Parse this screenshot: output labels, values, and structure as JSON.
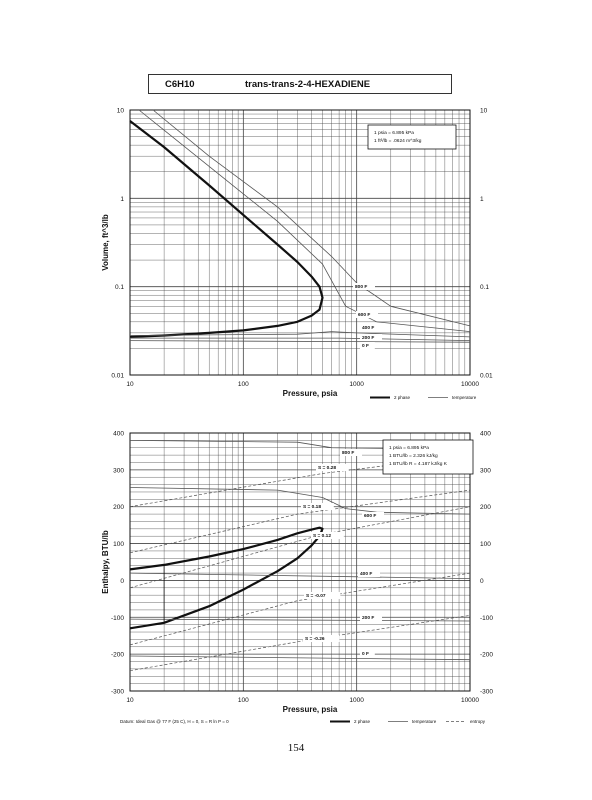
{
  "header": {
    "formula": "C6H10",
    "name": "trans-trans-2-4-HEXADIENE"
  },
  "page_number": "154",
  "colors": {
    "ink": "#111111",
    "grid": "#444444",
    "thin": "#555555"
  },
  "chart_data": [
    {
      "type": "line",
      "xlabel": "Pressure,  psia",
      "ylabel": "Volume, ft^3/lb",
      "xscale": "log",
      "yscale": "log",
      "xlim": [
        10,
        10000
      ],
      "ylim": [
        0.01,
        10
      ],
      "x_ticks": [
        "10",
        "100",
        "1000",
        "10000"
      ],
      "y_ticks_left": [
        "0.01",
        "0.1",
        "1",
        "10"
      ],
      "y_ticks_right": [
        "0.01",
        "0.1",
        "1",
        "10"
      ],
      "grid": true,
      "note_box": [
        "1 psia  =  6.895 kPa",
        "1 ft^3/lb  =  .0624 m^3/kg"
      ],
      "legend": [
        "2 phase",
        "temperature"
      ],
      "series": [
        {
          "kind": "2 phase",
          "x": [
            10,
            20,
            50,
            100,
            200,
            300,
            400,
            470,
            500,
            470,
            400,
            300,
            200,
            100,
            50,
            20,
            10
          ],
          "y": [
            7.5,
            3.8,
            1.4,
            0.65,
            0.3,
            0.19,
            0.13,
            0.1,
            0.075,
            0.055,
            0.047,
            0.04,
            0.036,
            0.032,
            0.03,
            0.028,
            0.027
          ]
        },
        {
          "kind": "temperature",
          "label": "0 F",
          "x": [
            10,
            10000
          ],
          "y": [
            0.0245,
            0.0235
          ]
        },
        {
          "kind": "temperature",
          "label": "200 F",
          "x": [
            10,
            700,
            10000
          ],
          "y": [
            0.0262,
            0.0262,
            0.0245
          ]
        },
        {
          "kind": "temperature",
          "label": "400 F",
          "x": [
            10,
            300,
            600,
            1000,
            10000
          ],
          "y": [
            0.028,
            0.029,
            0.031,
            0.03,
            0.027
          ]
        },
        {
          "kind": "temperature",
          "label": "600 F",
          "x": [
            12,
            50,
            200,
            500,
            800,
            1500,
            10000
          ],
          "y": [
            10,
            2.3,
            0.55,
            0.18,
            0.06,
            0.04,
            0.031
          ]
        },
        {
          "kind": "temperature",
          "label": "800 F",
          "x": [
            16,
            50,
            200,
            600,
            1000,
            2000,
            10000
          ],
          "y": [
            10,
            3.0,
            0.8,
            0.22,
            0.11,
            0.06,
            0.036
          ]
        }
      ],
      "line_labels": [
        "800 F",
        "600 F",
        "400 F",
        "200 F",
        "0 F"
      ]
    },
    {
      "type": "line",
      "xlabel": "Pressure,  psia",
      "ylabel": "Enthalpy, BTU/lb",
      "xscale": "log",
      "yscale": "linear",
      "xlim": [
        10,
        10000
      ],
      "ylim": [
        -300,
        400
      ],
      "x_ticks": [
        "10",
        "100",
        "1000",
        "10000"
      ],
      "y_ticks_left": [
        "-300",
        "-200",
        "-100",
        "0",
        "100",
        "200",
        "300",
        "400"
      ],
      "y_ticks_right": [
        "-300",
        "-200",
        "-100",
        "0",
        "100",
        "200",
        "300",
        "400"
      ],
      "grid": true,
      "note_box": [
        "1 psia  =  6.895 kPa",
        "1 BTU/lb  =  2.326 kJ/kg",
        "1 BTU/lb R  =  4.187 kJ/kg K"
      ],
      "legend": [
        "2 phase",
        "temperature",
        "entropy"
      ],
      "footnote": "Datum: Ideal Gas @ 77 F (25 C),  H = 0,  S = R ln P = 0",
      "series": [
        {
          "kind": "2 phase",
          "x": [
            10,
            20,
            50,
            100,
            200,
            300,
            400,
            470,
            500,
            470,
            400,
            300,
            200,
            100,
            50,
            20,
            10
          ],
          "y": [
            30,
            42,
            65,
            85,
            110,
            128,
            138,
            143,
            140,
            120,
            95,
            60,
            25,
            -25,
            -70,
            -115,
            -130
          ]
        },
        {
          "kind": "temperature",
          "label": "800 F",
          "x": [
            10,
            300,
            600,
            10000
          ],
          "y": [
            380,
            375,
            360,
            355
          ]
        },
        {
          "kind": "temperature",
          "label": "600 F",
          "x": [
            10,
            200,
            500,
            800,
            1500,
            10000
          ],
          "y": [
            252,
            245,
            225,
            195,
            185,
            180
          ]
        },
        {
          "kind": "temperature",
          "label": "400 F",
          "x": [
            10,
            10000
          ],
          "y": [
            20,
            5
          ]
        },
        {
          "kind": "temperature",
          "label": "200 F",
          "x": [
            10,
            10000
          ],
          "y": [
            -105,
            -110
          ]
        },
        {
          "kind": "temperature",
          "label": "0 F",
          "x": [
            10,
            10000
          ],
          "y": [
            -205,
            -215
          ]
        },
        {
          "kind": "entropy",
          "label": "S = 0.28",
          "x": [
            10,
            500,
            10000
          ],
          "y": [
            200,
            290,
            340
          ]
        },
        {
          "kind": "entropy",
          "label": "S = 0.18",
          "x": [
            10,
            300,
            10000
          ],
          "y": [
            75,
            180,
            245
          ]
        },
        {
          "kind": "entropy",
          "label": "S = 0.12",
          "x": [
            10,
            500,
            10000
          ],
          "y": [
            -20,
            125,
            200
          ]
        },
        {
          "kind": "entropy",
          "label": "S = -0.07",
          "x": [
            10,
            300,
            10000
          ],
          "y": [
            -175,
            -55,
            20
          ]
        },
        {
          "kind": "entropy",
          "label": "S = -0.26",
          "x": [
            10,
            400,
            10000
          ],
          "y": [
            -245,
            -160,
            -95
          ]
        }
      ],
      "line_labels": [
        "800 F",
        "600 F",
        "400 F",
        "200 F",
        "0 F",
        "S = 0.28",
        "S = 0.18",
        "S = 0.12",
        "S = -0.07",
        "S = -0.26"
      ]
    }
  ]
}
